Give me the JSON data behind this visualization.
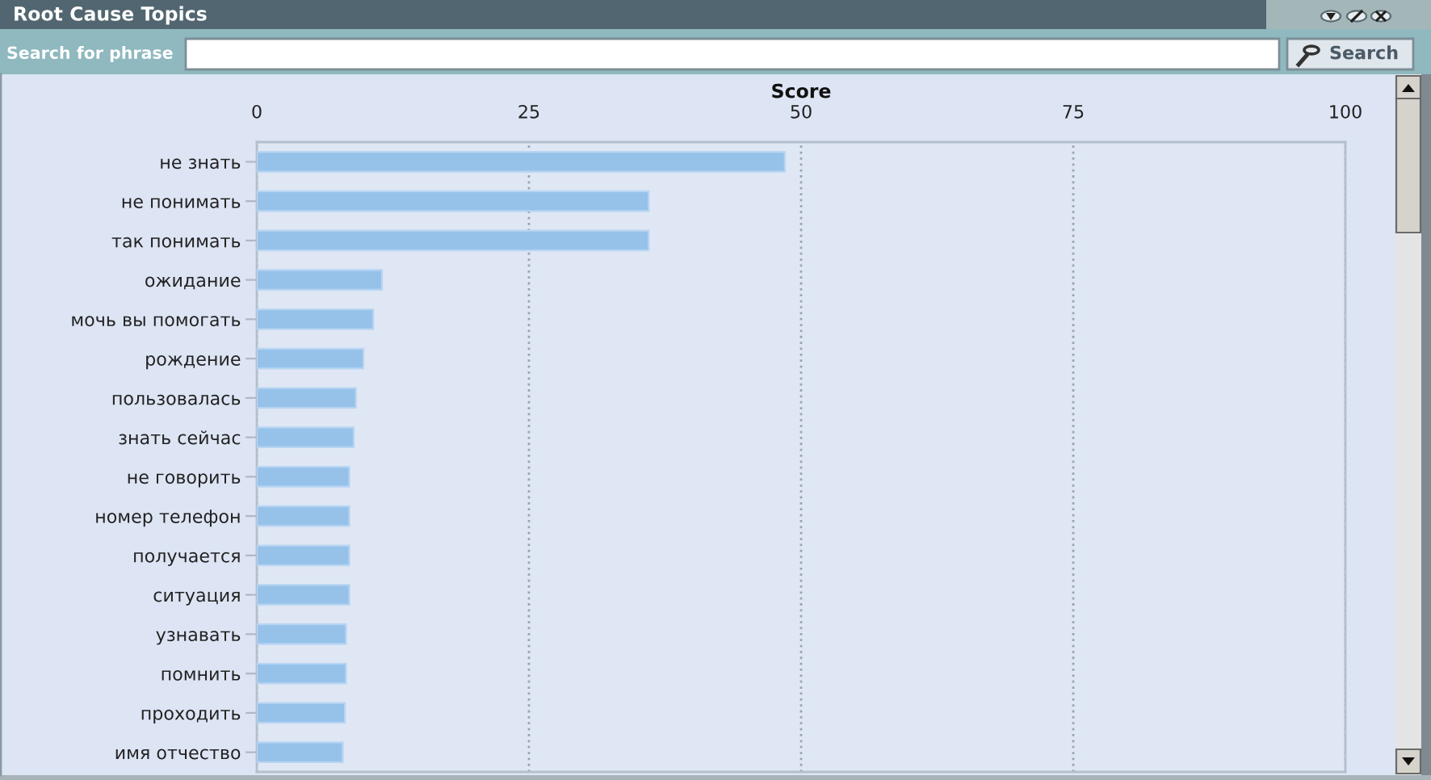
{
  "chart_data": {
    "type": "bar",
    "orientation": "horizontal",
    "title": "Root Cause Topics",
    "xlabel": "Score",
    "annotations": [
      "Search for phrase",
      "Search"
    ],
    "categories": [
      "не знать",
      "не понимать",
      "так понимать",
      "ожидание",
      "мочь вы помогать",
      "рождение",
      "пользовалась",
      "знать сейчас",
      "не говорить",
      "номер телефон",
      "получается",
      "ситуация",
      "узнавать",
      "помнить",
      "проходить",
      "имя отчество"
    ],
    "values": [
      48.5,
      36.0,
      36.0,
      11.5,
      10.7,
      9.8,
      9.1,
      8.9,
      8.5,
      8.5,
      8.5,
      8.5,
      8.2,
      8.2,
      8.1,
      7.9
    ],
    "color": "#96c2ea",
    "xlim": [
      0,
      100
    ],
    "xticks": [
      0,
      25,
      50,
      75,
      100
    ],
    "grid": "x"
  }
}
